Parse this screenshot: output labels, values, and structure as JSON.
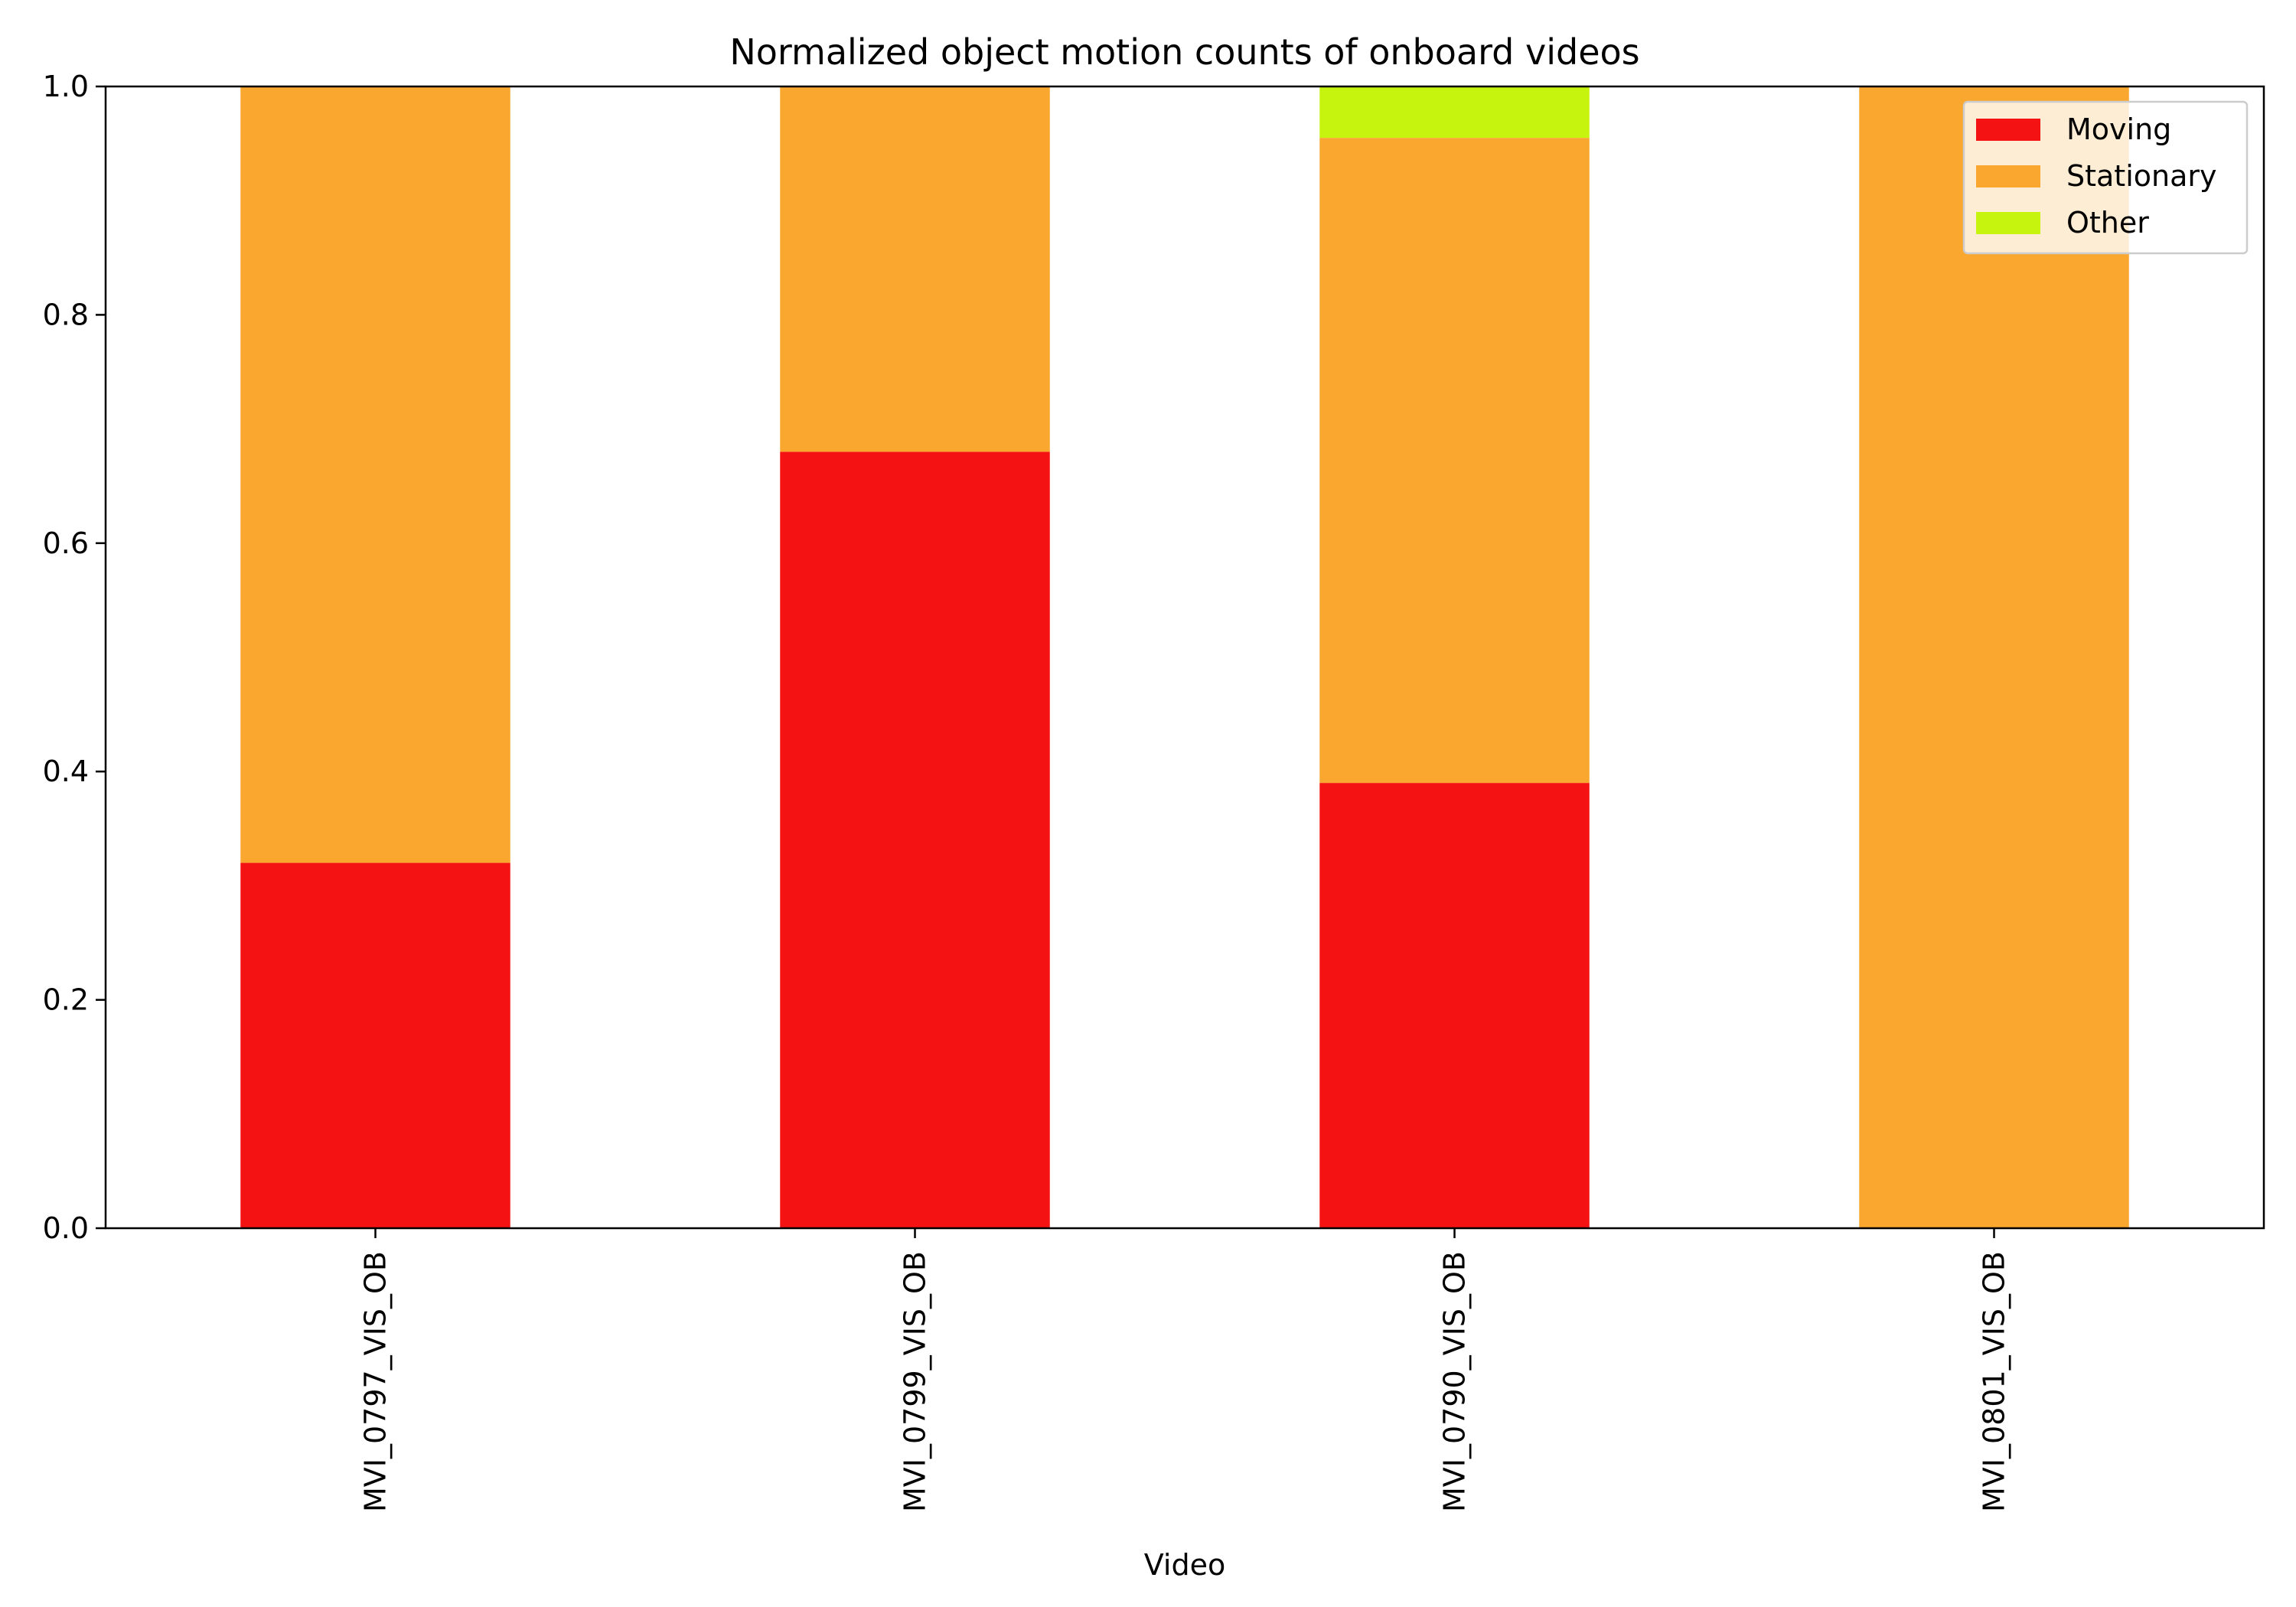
{
  "chart_data": {
    "type": "bar",
    "stacked": true,
    "title": "Normalized object motion counts of onboard videos",
    "xlabel": "Video",
    "ylabel": "",
    "ylim": [
      0,
      1.0
    ],
    "yticks": [
      0.0,
      0.2,
      0.4,
      0.6,
      0.8,
      1.0
    ],
    "ytick_labels": [
      "0.0",
      "0.2",
      "0.4",
      "0.6",
      "0.8",
      "1.0"
    ],
    "categories": [
      "MVI_0797_VIS_OB",
      "MVI_0799_VIS_OB",
      "MVI_0790_VIS_OB",
      "MVI_0801_VIS_OB"
    ],
    "series": [
      {
        "name": "Moving",
        "color": "#f51213",
        "values": [
          0.32,
          0.68,
          0.39,
          0.0
        ]
      },
      {
        "name": "Stationary",
        "color": "#f9a72f",
        "values": [
          0.68,
          0.32,
          0.565,
          1.0
        ]
      },
      {
        "name": "Other",
        "color": "#c6f40f",
        "values": [
          0.0,
          0.0,
          0.045,
          0.0
        ]
      }
    ],
    "grid": false,
    "legend_position": "top-right"
  }
}
